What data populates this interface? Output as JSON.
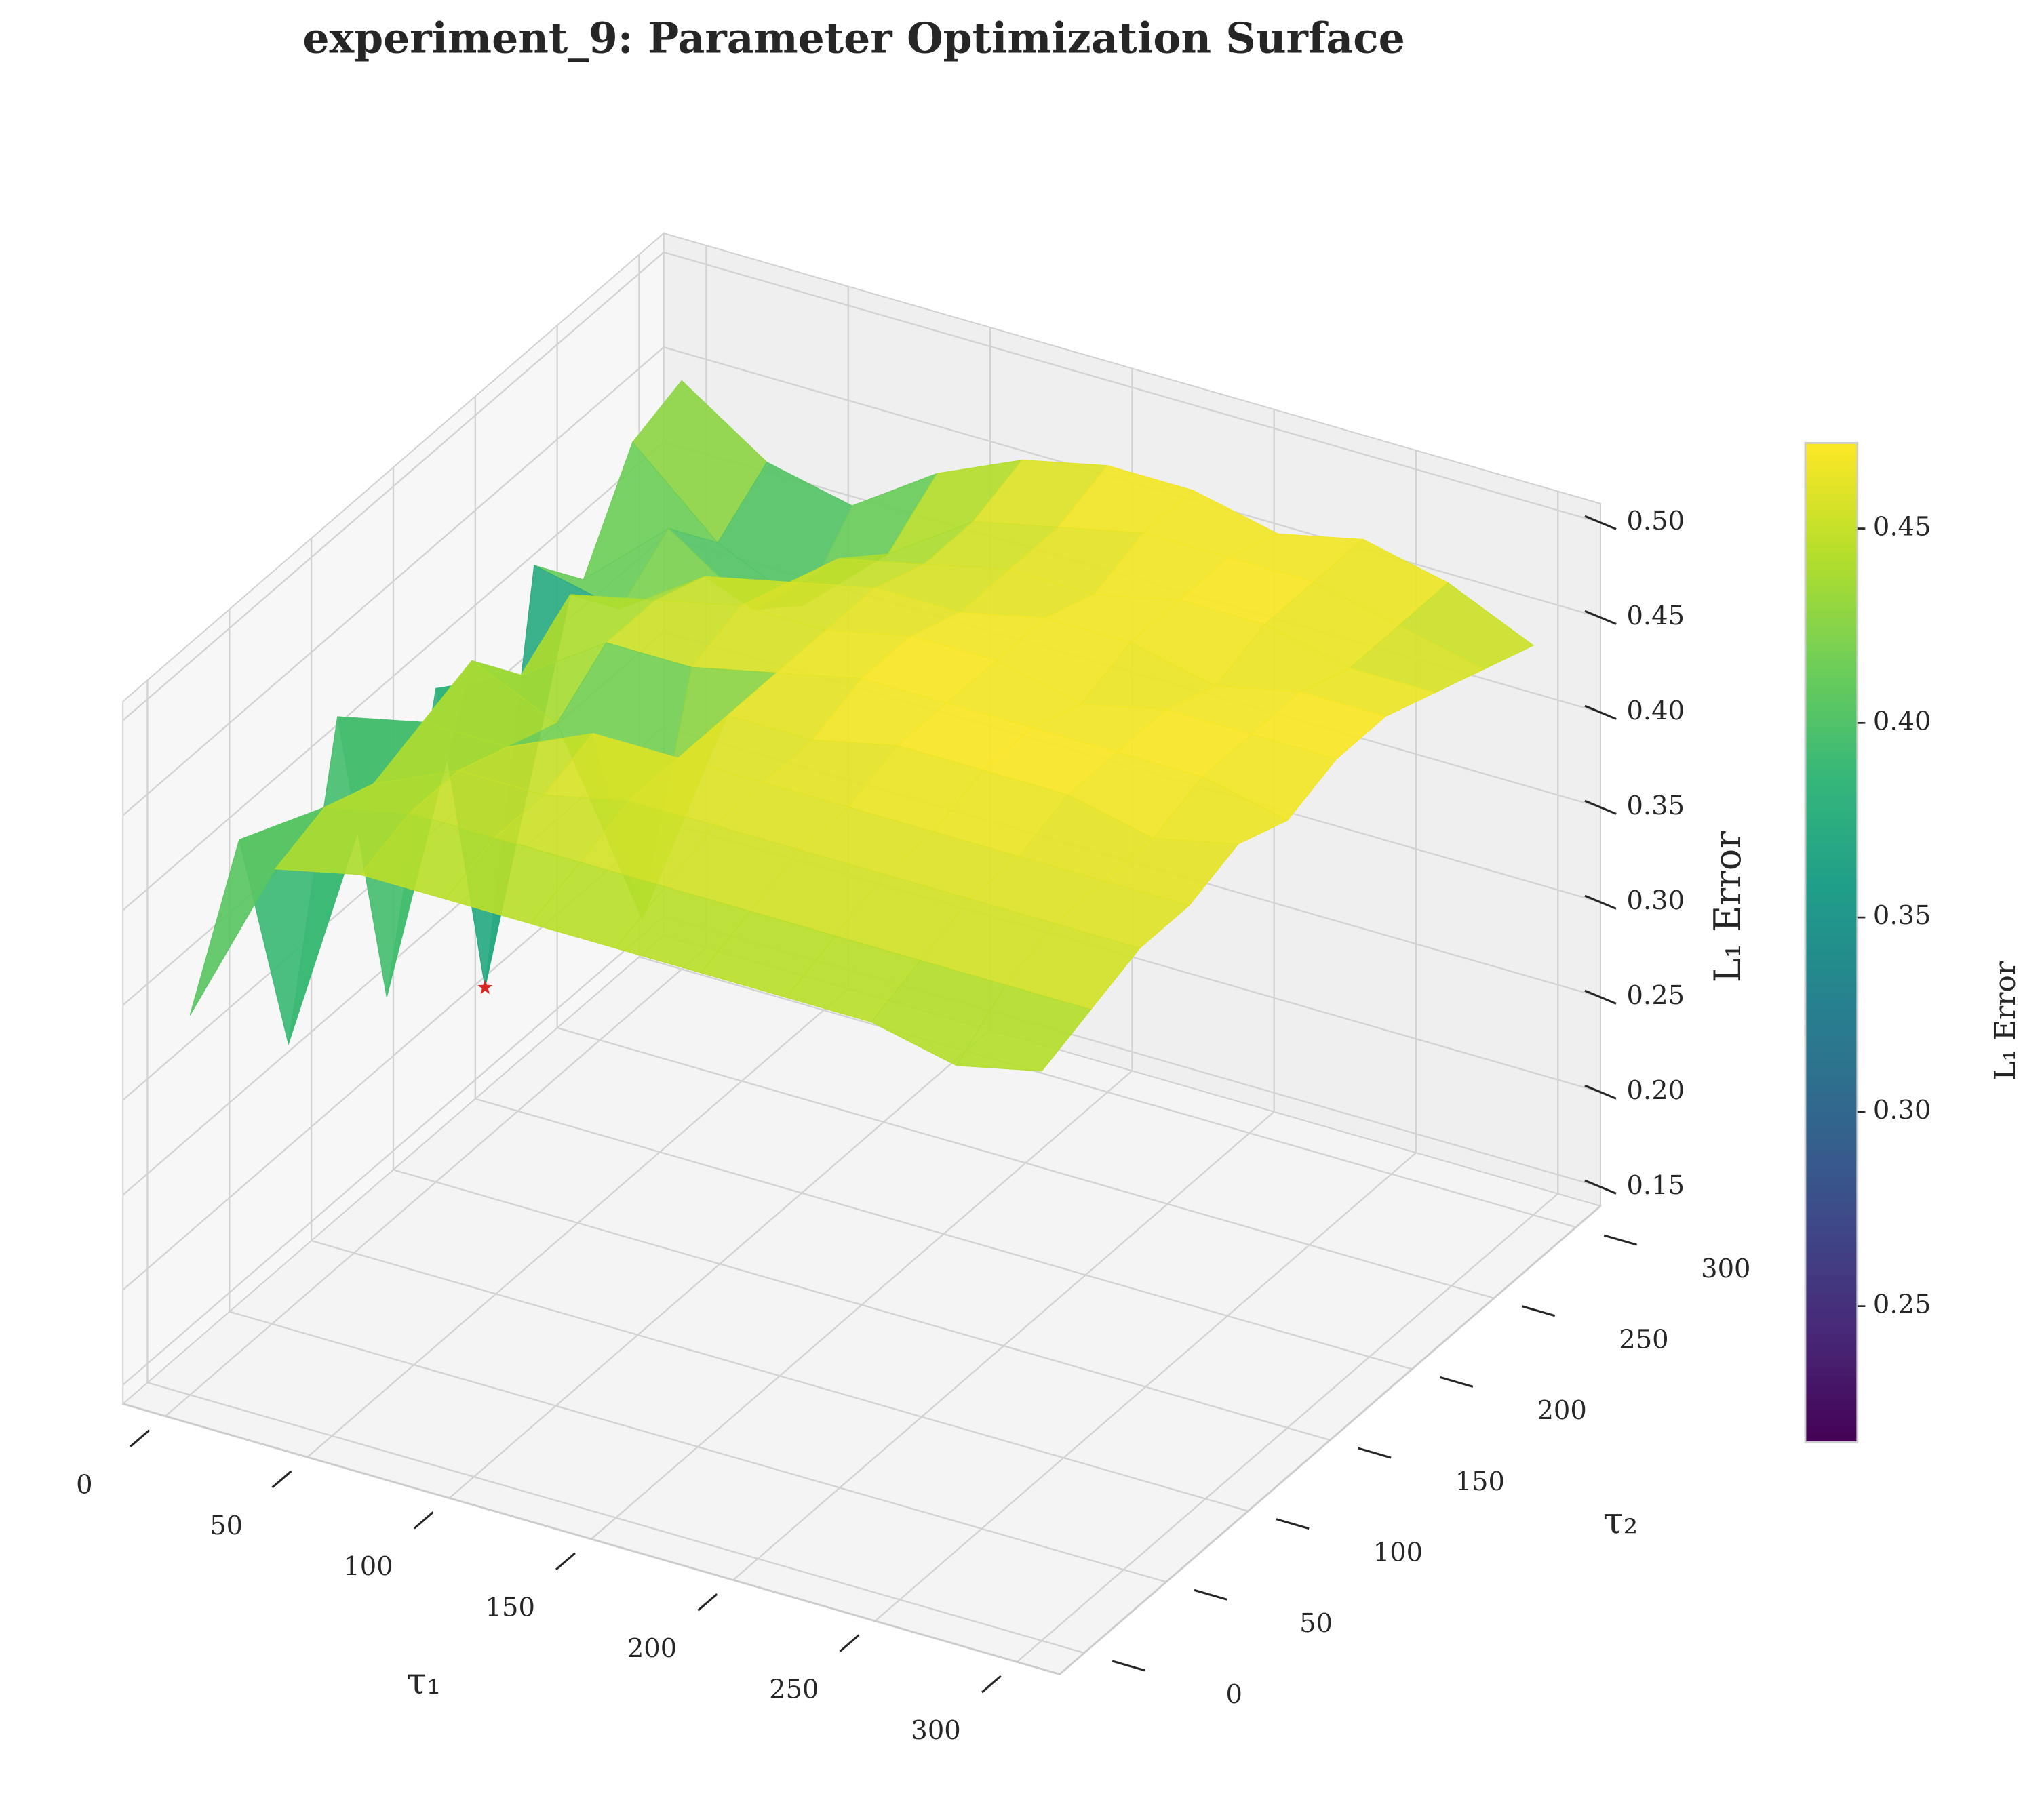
{
  "chart_data": {
    "type": "surface",
    "title": "experiment_9: Parameter Optimization Surface",
    "xlabel": "τ₁",
    "ylabel": "τ₂",
    "zlabel": "L₁ Error",
    "colorbar_label": "L₁ Error",
    "colormap": "viridis",
    "x": [
      0,
      30,
      60,
      90,
      120,
      150,
      180,
      210,
      240,
      270,
      300
    ],
    "y": [
      0,
      30,
      60,
      90,
      120,
      150,
      180,
      210,
      240,
      270,
      300
    ],
    "values": [
      [
        0.34,
        0.43,
        0.44,
        0.44,
        0.44,
        0.44,
        0.44,
        0.44,
        0.44,
        0.43,
        0.44
      ],
      [
        0.41,
        0.44,
        0.45,
        0.45,
        0.45,
        0.45,
        0.45,
        0.45,
        0.45,
        0.45,
        0.45
      ],
      [
        0.28,
        0.43,
        0.45,
        0.45,
        0.46,
        0.46,
        0.46,
        0.46,
        0.46,
        0.46,
        0.46
      ],
      [
        0.43,
        0.44,
        0.44,
        0.46,
        0.46,
        0.46,
        0.46,
        0.46,
        0.46,
        0.46,
        0.46
      ],
      [
        0.26,
        0.45,
        0.43,
        0.34,
        0.46,
        0.46,
        0.47,
        0.47,
        0.47,
        0.46,
        0.47
      ],
      [
        0.4,
        0.42,
        0.45,
        0.45,
        0.46,
        0.47,
        0.47,
        0.47,
        0.47,
        0.47,
        0.46
      ],
      [
        0.22,
        0.44,
        0.45,
        0.46,
        0.46,
        0.47,
        0.47,
        0.46,
        0.47,
        0.47,
        0.47
      ],
      [
        0.42,
        0.41,
        0.44,
        0.45,
        0.46,
        0.46,
        0.47,
        0.47,
        0.46,
        0.47,
        0.47
      ],
      [
        0.39,
        0.43,
        0.4,
        0.44,
        0.45,
        0.46,
        0.46,
        0.47,
        0.47,
        0.46,
        0.46
      ],
      [
        0.44,
        0.4,
        0.38,
        0.42,
        0.45,
        0.46,
        0.47,
        0.47,
        0.47,
        0.46,
        0.45
      ],
      [
        0.45,
        0.42,
        0.41,
        0.44,
        0.46,
        0.47,
        0.47,
        0.46,
        0.47,
        0.46,
        0.44
      ]
    ],
    "xlim": [
      -15,
      315
    ],
    "ylim": [
      -15,
      315
    ],
    "zlim": [
      0.14,
      0.51
    ],
    "xticks": [
      0,
      50,
      100,
      150,
      200,
      250,
      300
    ],
    "yticks": [
      0,
      50,
      100,
      150,
      200,
      250,
      300
    ],
    "zticks": [
      0.15,
      {
        "value": 0.2,
        "label": "0.20"
      },
      0.25,
      {
        "value": 0.3,
        "label": "0.30"
      },
      0.35,
      {
        "value": 0.4,
        "label": "0.40"
      },
      0.45,
      {
        "value": 0.5,
        "label": "0.50"
      }
    ],
    "clim": [
      0.215,
      0.472
    ],
    "cticks": [
      0.25,
      {
        "value": 0.3,
        "label": "0.30"
      },
      0.35,
      {
        "value": 0.4,
        "label": "0.40"
      },
      0.45
    ],
    "min_marker_color": "#d62728",
    "grid": true
  }
}
